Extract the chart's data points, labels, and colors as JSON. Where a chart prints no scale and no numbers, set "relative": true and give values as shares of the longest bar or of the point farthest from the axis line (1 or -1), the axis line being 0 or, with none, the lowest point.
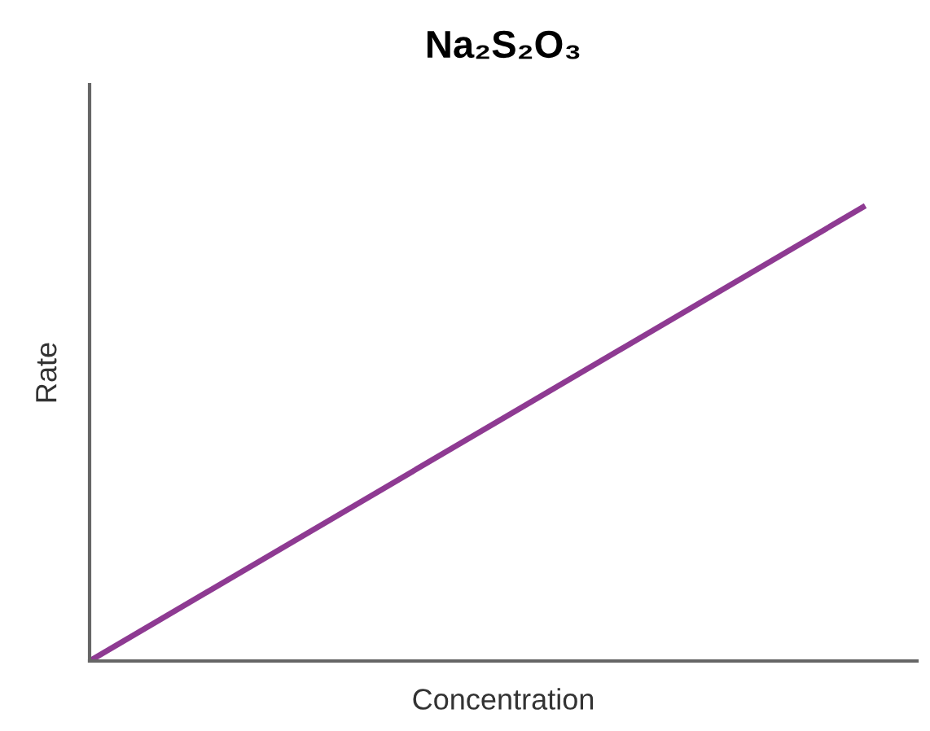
{
  "chart_data": {
    "type": "line",
    "title": "Na₂S₂O₃",
    "xlabel": "Concentration",
    "ylabel": "Rate",
    "relative": true,
    "categories": [
      null,
      null
    ],
    "series": [
      {
        "color": "#8e3a92",
        "values": [
          0,
          1
        ]
      }
    ],
    "legend": false,
    "marker": "none",
    "line_style": "solid"
  }
}
